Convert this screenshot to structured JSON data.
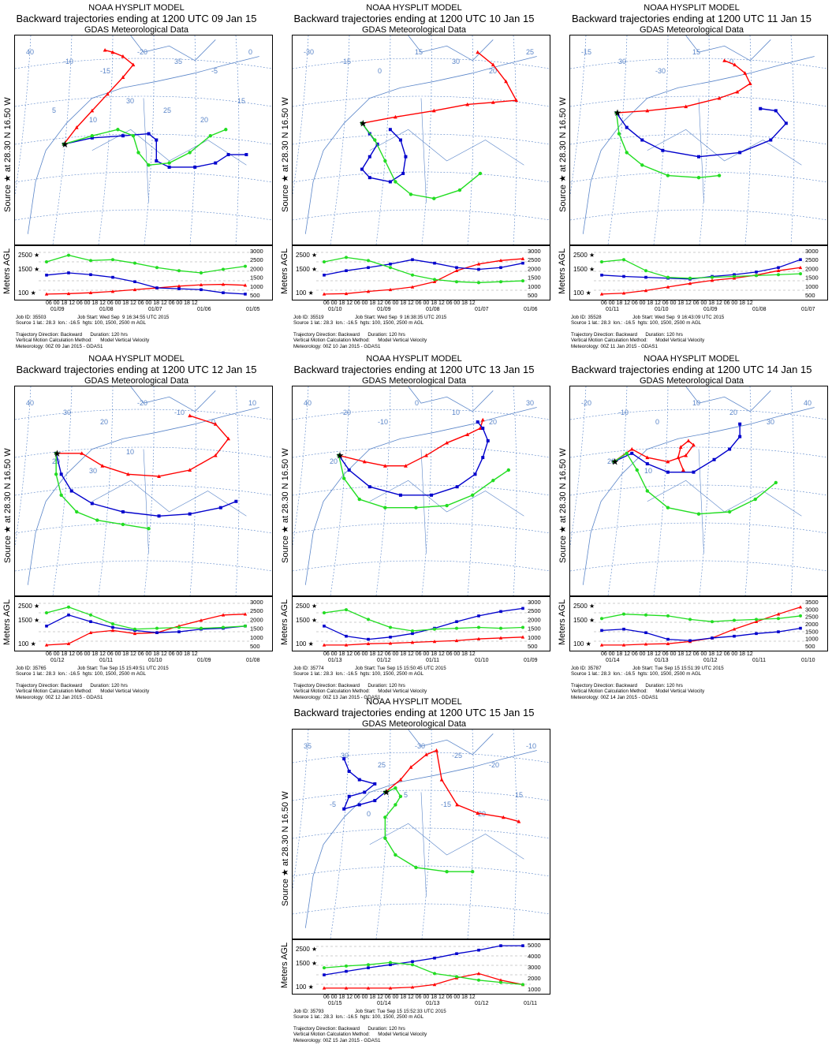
{
  "common": {
    "model": "NOAA HYSPLIT MODEL",
    "met": "GDAS Meteorological Data",
    "source_label": "Source ★ at  28.30 N   16.50 W",
    "agl_label": "Meters AGL",
    "trajectory_line": "Trajectory Direction: Backward      Duration: 120 hrs",
    "vertical_line": "Vertical Motion Calculation Method:      Model Vertical Velocity",
    "source_line": "Source 1 lat.: 28.3  lon.: -16.5  hgts: 100, 1500, 2500 m AGL",
    "hour_ticks": "06 00 18 12 06 00 18 12 06 00 18 12 06 00 18 12 06 00 18 12",
    "start_levels": [
      "2500",
      "1500",
      "100"
    ],
    "colors": {
      "red": "#ff0000",
      "blue": "#0000cc",
      "green": "#22dd22",
      "map": "#5b86c9"
    }
  },
  "panels": [
    {
      "title": "Backward trajectories ending at 1200 UTC 09 Jan 15",
      "job_id": "Job ID: 35503",
      "job_start": "Job Start: Wed Sep  9 16:34:55 UTC 2015",
      "meteorology": "Meteorology: 00Z 09 Jan 2015 - GDAS1",
      "dates": [
        "01/09",
        "01/08",
        "01/07",
        "01/06",
        "01/05"
      ],
      "alt_scale": [
        "3000",
        "2500",
        "2000",
        "1500",
        "1000",
        "500"
      ],
      "map_labels": [
        "40",
        "-10",
        "-15",
        "-20",
        "35",
        "-5",
        "0",
        "5",
        "10",
        "30",
        "25",
        "20",
        "15"
      ],
      "source": [
        0.19,
        0.52
      ],
      "red": [
        [
          0.19,
          0.52
        ],
        [
          0.24,
          0.44
        ],
        [
          0.3,
          0.36
        ],
        [
          0.36,
          0.28
        ],
        [
          0.42,
          0.2
        ],
        [
          0.46,
          0.14
        ],
        [
          0.42,
          0.1
        ],
        [
          0.38,
          0.08
        ],
        [
          0.35,
          0.07
        ]
      ],
      "blue": [
        [
          0.19,
          0.52
        ],
        [
          0.3,
          0.49
        ],
        [
          0.42,
          0.48
        ],
        [
          0.52,
          0.47
        ],
        [
          0.55,
          0.5
        ],
        [
          0.55,
          0.6
        ],
        [
          0.6,
          0.63
        ],
        [
          0.7,
          0.63
        ],
        [
          0.78,
          0.61
        ],
        [
          0.83,
          0.57
        ],
        [
          0.9,
          0.57
        ]
      ],
      "green": [
        [
          0.19,
          0.52
        ],
        [
          0.3,
          0.48
        ],
        [
          0.4,
          0.45
        ],
        [
          0.46,
          0.48
        ],
        [
          0.48,
          0.56
        ],
        [
          0.52,
          0.62
        ],
        [
          0.6,
          0.61
        ],
        [
          0.68,
          0.56
        ],
        [
          0.76,
          0.48
        ],
        [
          0.82,
          0.45
        ]
      ],
      "red_alt": [
        0.02,
        0.03,
        0.05,
        0.08,
        0.12,
        0.16,
        0.2,
        0.23,
        0.24,
        0.22
      ],
      "blue_alt": [
        0.45,
        0.5,
        0.46,
        0.4,
        0.3,
        0.16,
        0.14,
        0.12,
        0.05,
        0.02
      ],
      "green_alt": [
        0.75,
        0.9,
        0.78,
        0.8,
        0.72,
        0.62,
        0.55,
        0.5,
        0.58,
        0.65
      ]
    },
    {
      "title": "Backward trajectories ending at 1200 UTC 10 Jan 15",
      "job_id": "Job ID: 35519",
      "job_start": "Job Start: Wed Sep  9 16:38:35 UTC 2015",
      "meteorology": "Meteorology: 00Z 10 Jan 2015 - GDAS1",
      "dates": [
        "01/10",
        "01/09",
        "01/08",
        "01/07",
        "01/06"
      ],
      "alt_scale": [
        "3000",
        "2500",
        "2000",
        "1500",
        "1000",
        "500"
      ],
      "map_labels": [
        "-30",
        "-15",
        "0",
        "15",
        "30",
        "20",
        "25"
      ],
      "source": [
        0.27,
        0.42
      ],
      "red": [
        [
          0.27,
          0.42
        ],
        [
          0.4,
          0.39
        ],
        [
          0.55,
          0.36
        ],
        [
          0.68,
          0.33
        ],
        [
          0.78,
          0.32
        ],
        [
          0.87,
          0.31
        ],
        [
          0.83,
          0.22
        ],
        [
          0.78,
          0.14
        ],
        [
          0.72,
          0.08
        ]
      ],
      "blue": [
        [
          0.27,
          0.42
        ],
        [
          0.3,
          0.47
        ],
        [
          0.33,
          0.52
        ],
        [
          0.3,
          0.58
        ],
        [
          0.27,
          0.64
        ],
        [
          0.3,
          0.68
        ],
        [
          0.38,
          0.7
        ],
        [
          0.43,
          0.66
        ],
        [
          0.44,
          0.58
        ],
        [
          0.42,
          0.5
        ],
        [
          0.38,
          0.45
        ]
      ],
      "green": [
        [
          0.27,
          0.42
        ],
        [
          0.32,
          0.5
        ],
        [
          0.36,
          0.6
        ],
        [
          0.4,
          0.7
        ],
        [
          0.46,
          0.76
        ],
        [
          0.55,
          0.78
        ],
        [
          0.65,
          0.74
        ],
        [
          0.73,
          0.66
        ]
      ],
      "red_alt": [
        0.02,
        0.03,
        0.08,
        0.12,
        0.18,
        0.3,
        0.55,
        0.7,
        0.78,
        0.82
      ],
      "blue_alt": [
        0.45,
        0.55,
        0.62,
        0.7,
        0.8,
        0.72,
        0.62,
        0.58,
        0.62,
        0.72
      ],
      "green_alt": [
        0.75,
        0.85,
        0.78,
        0.62,
        0.45,
        0.35,
        0.3,
        0.28,
        0.3,
        0.32
      ]
    },
    {
      "title": "Backward trajectories ending at 1200 UTC 11 Jan 15",
      "job_id": "Job ID: 35528",
      "job_start": "Job Start: Wed Sep  9 16:43:09 UTC 2015",
      "meteorology": "Meteorology: 00Z 11 Jan 2015 - GDAS1",
      "dates": [
        "01/11",
        "01/10",
        "01/09",
        "01/08",
        "01/07"
      ],
      "alt_scale": [
        "3000",
        "2500",
        "2000",
        "1500",
        "1000",
        "500"
      ],
      "map_labels": [
        "-15",
        "30",
        "-30",
        "15",
        "0"
      ],
      "source": [
        0.18,
        0.37
      ],
      "red": [
        [
          0.18,
          0.37
        ],
        [
          0.3,
          0.36
        ],
        [
          0.45,
          0.34
        ],
        [
          0.58,
          0.3
        ],
        [
          0.65,
          0.27
        ],
        [
          0.7,
          0.23
        ],
        [
          0.68,
          0.18
        ],
        [
          0.64,
          0.14
        ],
        [
          0.6,
          0.12
        ]
      ],
      "blue": [
        [
          0.18,
          0.37
        ],
        [
          0.22,
          0.44
        ],
        [
          0.28,
          0.5
        ],
        [
          0.36,
          0.55
        ],
        [
          0.5,
          0.58
        ],
        [
          0.66,
          0.56
        ],
        [
          0.78,
          0.5
        ],
        [
          0.84,
          0.42
        ],
        [
          0.8,
          0.36
        ],
        [
          0.74,
          0.35
        ]
      ],
      "green": [
        [
          0.18,
          0.37
        ],
        [
          0.19,
          0.47
        ],
        [
          0.22,
          0.56
        ],
        [
          0.28,
          0.62
        ],
        [
          0.38,
          0.67
        ],
        [
          0.5,
          0.68
        ],
        [
          0.58,
          0.67
        ]
      ],
      "red_alt": [
        0.02,
        0.04,
        0.1,
        0.18,
        0.26,
        0.33,
        0.38,
        0.45,
        0.55,
        0.62
      ],
      "blue_alt": [
        0.45,
        0.42,
        0.4,
        0.38,
        0.36,
        0.42,
        0.46,
        0.52,
        0.62,
        0.8
      ],
      "green_alt": [
        0.75,
        0.8,
        0.55,
        0.4,
        0.38,
        0.4,
        0.42,
        0.44,
        0.46,
        0.48
      ]
    },
    {
      "title": "Backward trajectories ending at 1200 UTC 12 Jan 15",
      "job_id": "Job ID: 35765",
      "job_start": "Job Start: Tue Sep 15 15:49:51 UTC 2015",
      "meteorology": "Meteorology: 00Z 12 Jan 2015 - GDAS1",
      "dates": [
        "01/12",
        "01/11",
        "01/10",
        "01/09",
        "01/08"
      ],
      "alt_scale": [
        "3000",
        "2500",
        "2000",
        "1500",
        "1000",
        "500"
      ],
      "map_labels": [
        "40",
        "30",
        "20",
        "-20",
        "-10",
        "0",
        "10",
        "20",
        "30",
        "10"
      ],
      "source": [
        0.16,
        0.32
      ],
      "red": [
        [
          0.16,
          0.32
        ],
        [
          0.26,
          0.32
        ],
        [
          0.34,
          0.38
        ],
        [
          0.44,
          0.42
        ],
        [
          0.56,
          0.43
        ],
        [
          0.68,
          0.4
        ],
        [
          0.78,
          0.33
        ],
        [
          0.83,
          0.25
        ],
        [
          0.78,
          0.18
        ],
        [
          0.68,
          0.14
        ]
      ],
      "blue": [
        [
          0.16,
          0.32
        ],
        [
          0.18,
          0.42
        ],
        [
          0.22,
          0.5
        ],
        [
          0.3,
          0.56
        ],
        [
          0.42,
          0.6
        ],
        [
          0.56,
          0.62
        ],
        [
          0.68,
          0.61
        ],
        [
          0.8,
          0.58
        ],
        [
          0.86,
          0.55
        ]
      ],
      "green": [
        [
          0.16,
          0.32
        ],
        [
          0.16,
          0.42
        ],
        [
          0.18,
          0.52
        ],
        [
          0.24,
          0.6
        ],
        [
          0.32,
          0.64
        ],
        [
          0.42,
          0.66
        ],
        [
          0.52,
          0.68
        ]
      ],
      "red_alt": [
        0.02,
        0.05,
        0.3,
        0.35,
        0.28,
        0.3,
        0.45,
        0.58,
        0.7,
        0.72
      ],
      "blue_alt": [
        0.45,
        0.7,
        0.55,
        0.42,
        0.35,
        0.3,
        0.32,
        0.38,
        0.4,
        0.45
      ],
      "green_alt": [
        0.75,
        0.88,
        0.7,
        0.5,
        0.38,
        0.4,
        0.42,
        0.4,
        0.42,
        0.45
      ]
    },
    {
      "title": "Backward trajectories ending at 1200 UTC 13 Jan 15",
      "job_id": "Job ID: 35774",
      "job_start": "Job Start: Tue Sep 15 15:50:45 UTC 2015",
      "meteorology": "Meteorology: 00Z 13 Jan 2015 - GDAS1",
      "dates": [
        "01/13",
        "01/12",
        "01/11",
        "01/10",
        "01/09"
      ],
      "alt_scale": [
        "3000",
        "2500",
        "2000",
        "1500",
        "1000",
        "500"
      ],
      "map_labels": [
        "40",
        "-20",
        "-10",
        "0",
        "10",
        "20",
        "30",
        "20"
      ],
      "source": [
        0.18,
        0.33
      ],
      "red": [
        [
          0.18,
          0.33
        ],
        [
          0.28,
          0.36
        ],
        [
          0.36,
          0.38
        ],
        [
          0.44,
          0.38
        ],
        [
          0.52,
          0.33
        ],
        [
          0.6,
          0.27
        ],
        [
          0.68,
          0.23
        ],
        [
          0.73,
          0.2
        ],
        [
          0.74,
          0.16
        ]
      ],
      "blue": [
        [
          0.18,
          0.33
        ],
        [
          0.22,
          0.4
        ],
        [
          0.3,
          0.48
        ],
        [
          0.42,
          0.52
        ],
        [
          0.54,
          0.52
        ],
        [
          0.64,
          0.48
        ],
        [
          0.71,
          0.42
        ],
        [
          0.74,
          0.34
        ],
        [
          0.76,
          0.26
        ],
        [
          0.74,
          0.2
        ],
        [
          0.72,
          0.17
        ]
      ],
      "green": [
        [
          0.18,
          0.33
        ],
        [
          0.2,
          0.44
        ],
        [
          0.26,
          0.54
        ],
        [
          0.36,
          0.58
        ],
        [
          0.48,
          0.58
        ],
        [
          0.6,
          0.57
        ],
        [
          0.7,
          0.52
        ],
        [
          0.78,
          0.45
        ],
        [
          0.84,
          0.4
        ]
      ],
      "red_alt": [
        0.02,
        0.02,
        0.05,
        0.06,
        0.08,
        0.1,
        0.12,
        0.16,
        0.18,
        0.2
      ],
      "blue_alt": [
        0.45,
        0.22,
        0.15,
        0.2,
        0.28,
        0.4,
        0.55,
        0.68,
        0.78,
        0.85
      ],
      "green_alt": [
        0.75,
        0.82,
        0.6,
        0.42,
        0.34,
        0.38,
        0.4,
        0.42,
        0.4,
        0.42
      ]
    },
    {
      "title": "Backward trajectories ending at 1200 UTC 14 Jan 15",
      "job_id": "Job ID: 35787",
      "job_start": "Job Start: Tue Sep 15 15:51:39 UTC 2015",
      "meteorology": "Meteorology: 00Z 14 Jan 2015 - GDAS1",
      "dates": [
        "01/14",
        "01/13",
        "01/12",
        "01/11",
        "01/10"
      ],
      "alt_scale": [
        "3500",
        "3000",
        "2500",
        "2000",
        "1500",
        "1000",
        "500"
      ],
      "map_labels": [
        "-20",
        "-10",
        "0",
        "10",
        "20",
        "30",
        "40",
        "20",
        "10"
      ],
      "source": [
        0.17,
        0.36
      ],
      "red": [
        [
          0.17,
          0.36
        ],
        [
          0.24,
          0.3
        ],
        [
          0.3,
          0.34
        ],
        [
          0.38,
          0.36
        ],
        [
          0.45,
          0.33
        ],
        [
          0.48,
          0.28
        ],
        [
          0.46,
          0.26
        ],
        [
          0.43,
          0.29
        ],
        [
          0.42,
          0.34
        ],
        [
          0.44,
          0.4
        ]
      ],
      "blue": [
        [
          0.17,
          0.36
        ],
        [
          0.24,
          0.32
        ],
        [
          0.3,
          0.37
        ],
        [
          0.38,
          0.41
        ],
        [
          0.48,
          0.41
        ],
        [
          0.56,
          0.35
        ],
        [
          0.62,
          0.3
        ],
        [
          0.66,
          0.24
        ],
        [
          0.66,
          0.18
        ]
      ],
      "green": [
        [
          0.17,
          0.36
        ],
        [
          0.22,
          0.32
        ],
        [
          0.26,
          0.4
        ],
        [
          0.3,
          0.5
        ],
        [
          0.38,
          0.58
        ],
        [
          0.5,
          0.61
        ],
        [
          0.62,
          0.6
        ],
        [
          0.72,
          0.54
        ],
        [
          0.8,
          0.46
        ]
      ],
      "red_alt": [
        0.02,
        0.02,
        0.04,
        0.05,
        0.1,
        0.18,
        0.38,
        0.55,
        0.72,
        0.88
      ],
      "blue_alt": [
        0.35,
        0.38,
        0.3,
        0.15,
        0.12,
        0.18,
        0.22,
        0.28,
        0.32,
        0.4
      ],
      "green_alt": [
        0.62,
        0.72,
        0.7,
        0.68,
        0.6,
        0.55,
        0.58,
        0.6,
        0.62,
        0.68
      ]
    },
    {
      "title": "Backward trajectories ending at 1200 UTC 15 Jan 15",
      "job_id": "Job ID: 35793",
      "job_start": "Job Start: Tue Sep 15 15:52:33 UTC 2015",
      "meteorology": "Meteorology: 00Z 15 Jan 2015 - GDAS1",
      "dates": [
        "01/15",
        "01/14",
        "01/13",
        "01/12",
        "01/11"
      ],
      "alt_scale": [
        "5000",
        "4000",
        "3000",
        "2000",
        "1000"
      ],
      "map_labels": [
        "35",
        "30",
        "25",
        "-30",
        "-25",
        "-20",
        "-10",
        "-5",
        "0",
        "5",
        "-15",
        "20",
        "15"
      ],
      "source": [
        0.36,
        0.3
      ],
      "red": [
        [
          0.36,
          0.3
        ],
        [
          0.42,
          0.24
        ],
        [
          0.46,
          0.18
        ],
        [
          0.52,
          0.12
        ],
        [
          0.56,
          0.1
        ],
        [
          0.58,
          0.24
        ],
        [
          0.64,
          0.36
        ],
        [
          0.72,
          0.4
        ],
        [
          0.82,
          0.42
        ],
        [
          0.88,
          0.44
        ]
      ],
      "blue": [
        [
          0.36,
          0.3
        ],
        [
          0.32,
          0.34
        ],
        [
          0.26,
          0.36
        ],
        [
          0.2,
          0.38
        ],
        [
          0.22,
          0.32
        ],
        [
          0.28,
          0.3
        ],
        [
          0.32,
          0.26
        ],
        [
          0.26,
          0.24
        ],
        [
          0.22,
          0.2
        ],
        [
          0.2,
          0.14
        ]
      ],
      "green": [
        [
          0.36,
          0.3
        ],
        [
          0.4,
          0.28
        ],
        [
          0.42,
          0.32
        ],
        [
          0.4,
          0.36
        ],
        [
          0.36,
          0.42
        ],
        [
          0.36,
          0.52
        ],
        [
          0.4,
          0.6
        ],
        [
          0.48,
          0.66
        ],
        [
          0.6,
          0.68
        ],
        [
          0.7,
          0.68
        ]
      ],
      "red_alt": [
        0.02,
        0.02,
        0.02,
        0.02,
        0.04,
        0.1,
        0.25,
        0.35,
        0.2,
        0.1
      ],
      "blue_alt": [
        0.32,
        0.4,
        0.48,
        0.55,
        0.62,
        0.7,
        0.8,
        0.88,
        0.98,
        0.98
      ],
      "green_alt": [
        0.48,
        0.52,
        0.55,
        0.6,
        0.55,
        0.35,
        0.28,
        0.2,
        0.15,
        0.1
      ]
    }
  ]
}
